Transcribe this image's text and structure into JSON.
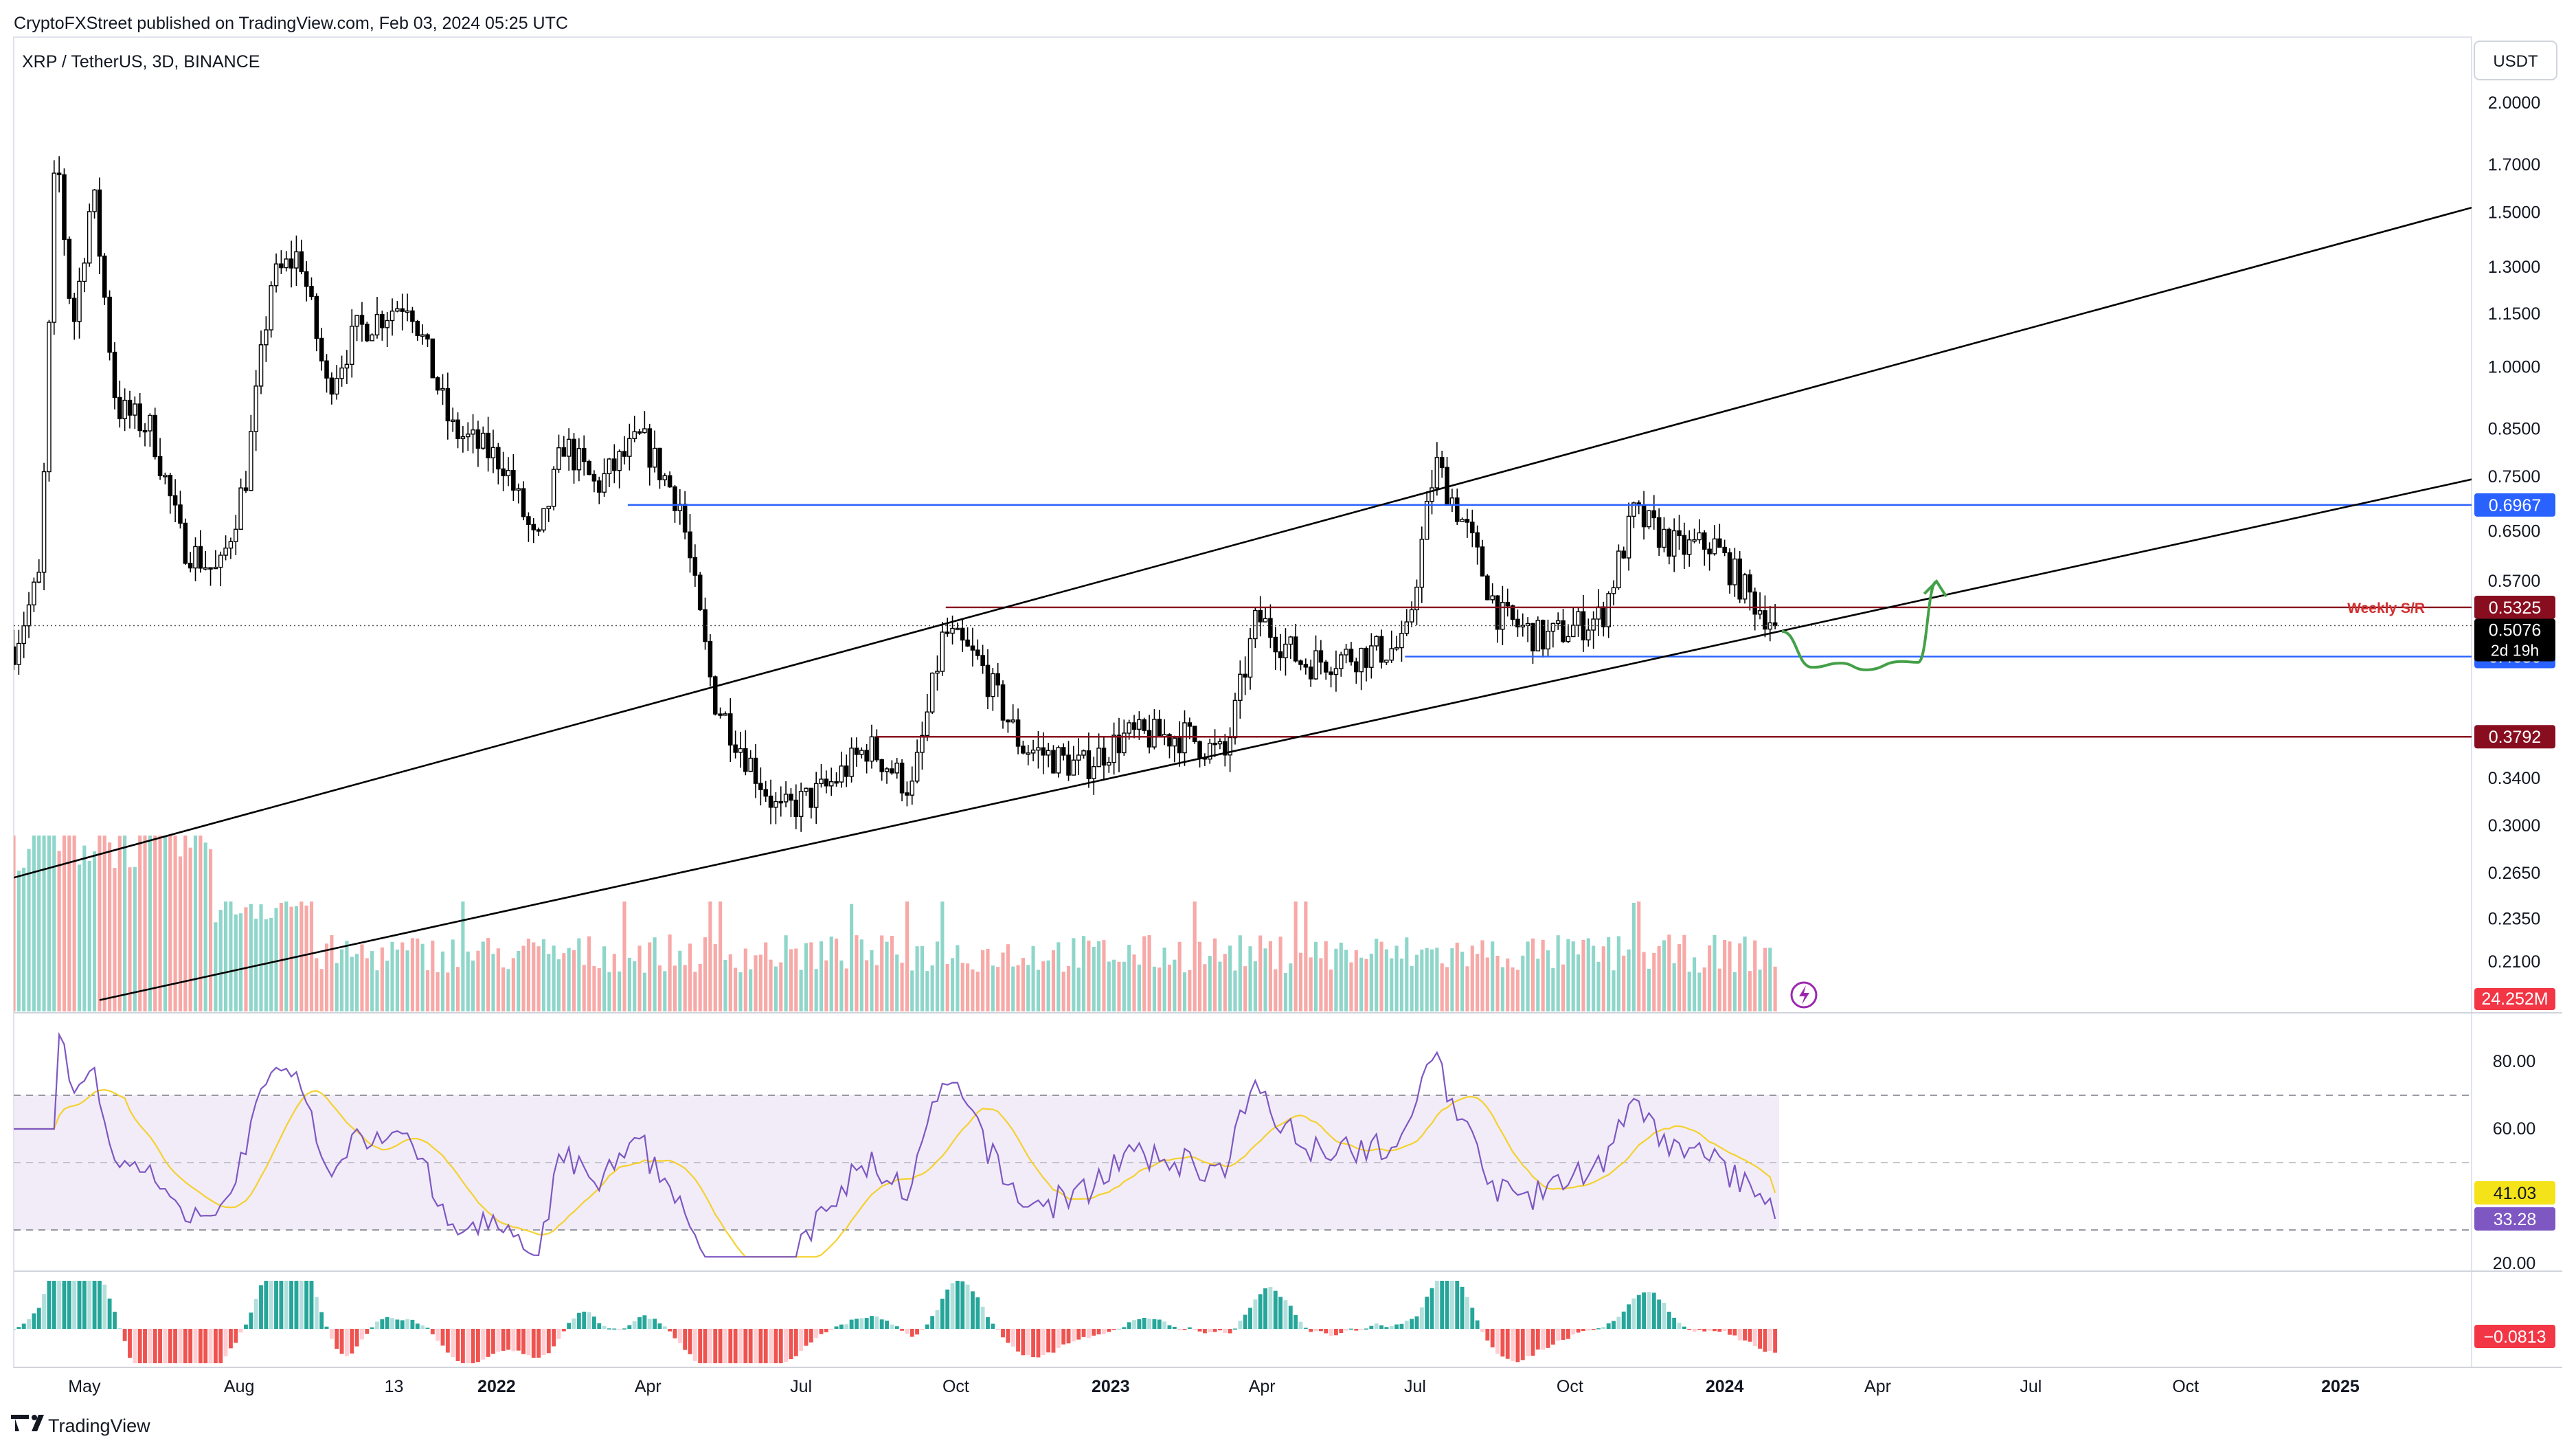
{
  "header": {
    "published": "CryptoFXStreet published on TradingView.com, Feb 03, 2024 05:25 UTC",
    "symbol": "XRP / TetherUS, 3D, BINANCE",
    "currency": "USDT"
  },
  "footer": {
    "brand": "TradingView"
  },
  "chart_data": {
    "type": "candlestick",
    "symbol": "XRP / TetherUS",
    "interval": "3D",
    "exchange": "BINANCE",
    "scale": "log",
    "x_ticks": [
      "May",
      "Aug",
      "13",
      "2022",
      "Apr",
      "Jul",
      "Oct",
      "2023",
      "Apr",
      "Jul",
      "Oct",
      "2024",
      "Apr",
      "Jul",
      "Oct",
      "2025"
    ],
    "x_ticks_bold": [
      "2022",
      "2023",
      "2024",
      "2025"
    ],
    "y_ticks": [
      "2.0000",
      "1.7000",
      "1.5000",
      "1.3000",
      "1.1500",
      "1.0000",
      "0.8500",
      "0.7500",
      "0.6500",
      "0.5700",
      "0.3400",
      "0.3000",
      "0.2650",
      "0.2350",
      "0.2100"
    ],
    "price_path": [
      {
        "date": "2021-03-20",
        "price": 0.48
      },
      {
        "date": "2021-04-05",
        "price": 0.58
      },
      {
        "date": "2021-04-14",
        "price": 1.82
      },
      {
        "date": "2021-04-24",
        "price": 1.1
      },
      {
        "date": "2021-05-06",
        "price": 1.6
      },
      {
        "date": "2021-05-20",
        "price": 0.9
      },
      {
        "date": "2021-06-10",
        "price": 0.85
      },
      {
        "date": "2021-06-28",
        "price": 0.63
      },
      {
        "date": "2021-07-20",
        "price": 0.58
      },
      {
        "date": "2021-08-05",
        "price": 0.75
      },
      {
        "date": "2021-08-20",
        "price": 1.25
      },
      {
        "date": "2021-09-06",
        "price": 1.35
      },
      {
        "date": "2021-09-22",
        "price": 0.95
      },
      {
        "date": "2021-10-10",
        "price": 1.1
      },
      {
        "date": "2021-11-10",
        "price": 1.2
      },
      {
        "date": "2021-12-05",
        "price": 0.85
      },
      {
        "date": "2022-01-05",
        "price": 0.78
      },
      {
        "date": "2022-01-25",
        "price": 0.62
      },
      {
        "date": "2022-02-10",
        "price": 0.82
      },
      {
        "date": "2022-03-01",
        "price": 0.73
      },
      {
        "date": "2022-03-28",
        "price": 0.83
      },
      {
        "date": "2022-04-20",
        "price": 0.7
      },
      {
        "date": "2022-05-10",
        "price": 0.42
      },
      {
        "date": "2022-06-18",
        "price": 0.31
      },
      {
        "date": "2022-07-15",
        "price": 0.33
      },
      {
        "date": "2022-08-10",
        "price": 0.37
      },
      {
        "date": "2022-09-05",
        "price": 0.33
      },
      {
        "date": "2022-09-24",
        "price": 0.5
      },
      {
        "date": "2022-10-15",
        "price": 0.46
      },
      {
        "date": "2022-11-09",
        "price": 0.37
      },
      {
        "date": "2022-12-15",
        "price": 0.35
      },
      {
        "date": "2023-01-10",
        "price": 0.38
      },
      {
        "date": "2023-02-15",
        "price": 0.38
      },
      {
        "date": "2023-03-10",
        "price": 0.36
      },
      {
        "date": "2023-03-29",
        "price": 0.52
      },
      {
        "date": "2023-04-25",
        "price": 0.46
      },
      {
        "date": "2023-05-25",
        "price": 0.47
      },
      {
        "date": "2023-06-25",
        "price": 0.48
      },
      {
        "date": "2023-07-13",
        "price": 0.78
      },
      {
        "date": "2023-08-01",
        "price": 0.65
      },
      {
        "date": "2023-08-20",
        "price": 0.52
      },
      {
        "date": "2023-09-15",
        "price": 0.49
      },
      {
        "date": "2023-10-20",
        "price": 0.52
      },
      {
        "date": "2023-11-08",
        "price": 0.68
      },
      {
        "date": "2023-12-05",
        "price": 0.62
      },
      {
        "date": "2023-12-25",
        "price": 0.63
      },
      {
        "date": "2024-01-15",
        "price": 0.55
      },
      {
        "date": "2024-02-01",
        "price": 0.5076
      }
    ],
    "horizontal_levels": [
      {
        "price": 0.6967,
        "label": "0.6967",
        "color": "#2962ff",
        "start": "2022-03-20"
      },
      {
        "price": 0.5325,
        "label": "0.5325",
        "color": "#880e1f",
        "start": "2022-09-25",
        "note": "Weekly S/R"
      },
      {
        "price": 0.468,
        "label": "0.4680",
        "color": "#2962ff",
        "start": "2023-06-25"
      },
      {
        "price": 0.3792,
        "label": "0.3792",
        "color": "#880e1f",
        "start": "2022-08-15"
      }
    ],
    "current_price": {
      "label": "0.5076",
      "countdown": "2d 19h"
    },
    "trendlines": [
      {
        "from": {
          "date": "2021-03-20",
          "price": 0.262
        },
        "to": {
          "date": "2025-03-20",
          "price": 1.52
        }
      },
      {
        "from": {
          "date": "2021-05-10",
          "price": 0.19
        },
        "to": {
          "date": "2025-03-20",
          "price": 0.745
        }
      }
    ],
    "projection": [
      {
        "date": "2024-02-04",
        "price": 0.5
      },
      {
        "date": "2024-02-22",
        "price": 0.455
      },
      {
        "date": "2024-03-10",
        "price": 0.46
      },
      {
        "date": "2024-03-25",
        "price": 0.452
      },
      {
        "date": "2024-04-15",
        "price": 0.462
      },
      {
        "date": "2024-04-25",
        "price": 0.461
      },
      {
        "date": "2024-05-06",
        "price": 0.57
      }
    ],
    "volume": {
      "last_label": "24.252M"
    },
    "rsi": {
      "y_ticks": [
        "80.00",
        "60.00",
        "20.00"
      ],
      "upper_band": 70,
      "lower_band": 30,
      "rsi_value": "33.28",
      "ma_value": "41.03",
      "rsi_color": "#7e57c2",
      "ma_color": "#f5d12f"
    },
    "macd": {
      "value": "−0.0813"
    }
  }
}
